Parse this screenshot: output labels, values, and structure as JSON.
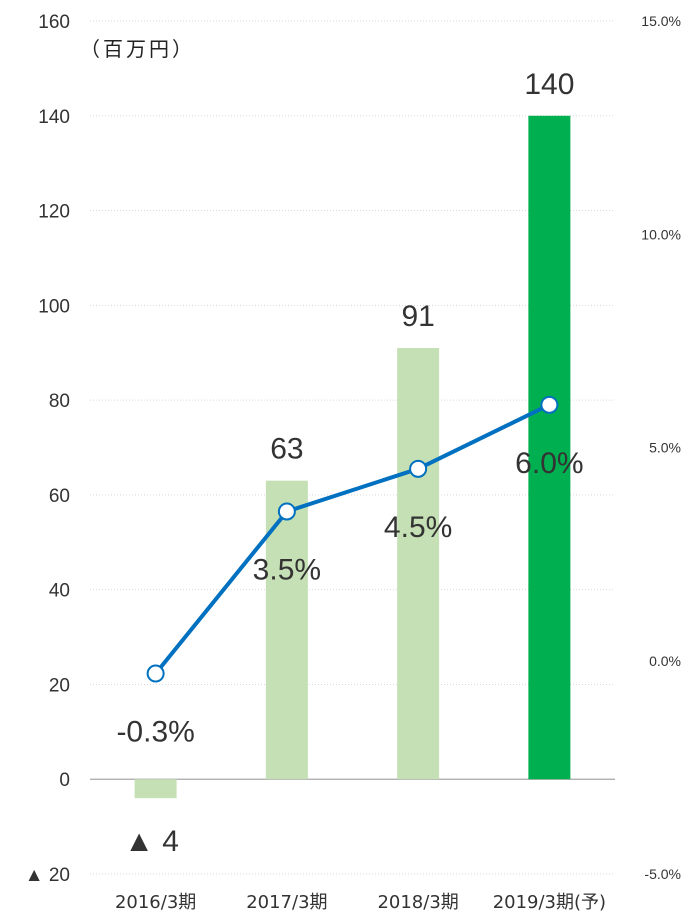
{
  "chart_data": {
    "type": "bar",
    "unit_label": "（百万円）",
    "categories": [
      "2016/3期",
      "2017/3期",
      "2018/3期",
      "2019/3期(予)"
    ],
    "series": [
      {
        "type": "bar",
        "axis": "left",
        "values": [
          -4,
          63,
          91,
          140
        ],
        "colors": [
          "#c5e0b4",
          "#c5e0b4",
          "#c5e0b4",
          "#00b050"
        ],
        "labels": [
          "▲ 4",
          "63",
          "91",
          "140"
        ]
      },
      {
        "type": "line",
        "axis": "right",
        "values": [
          -0.3,
          3.5,
          4.5,
          6.0
        ],
        "color": "#0070c0",
        "labels": [
          "-0.3%",
          "3.5%",
          "4.5%",
          "6.0%"
        ]
      }
    ],
    "y_left": {
      "ylim": [
        -20,
        160
      ],
      "ticks": [
        -20,
        0,
        20,
        40,
        60,
        80,
        100,
        120,
        140,
        160
      ],
      "tick_labels": [
        "▲ 20",
        "0",
        "20",
        "40",
        "60",
        "80",
        "100",
        "120",
        "140",
        "160"
      ]
    },
    "y_right": {
      "ylim": [
        -5,
        15
      ],
      "ticks": [
        -5,
        0,
        5,
        10,
        15
      ],
      "tick_labels": [
        "-5.0%",
        "0.0%",
        "5.0%",
        "10.0%",
        "15.0%"
      ]
    },
    "grid": true,
    "legend": "none"
  }
}
